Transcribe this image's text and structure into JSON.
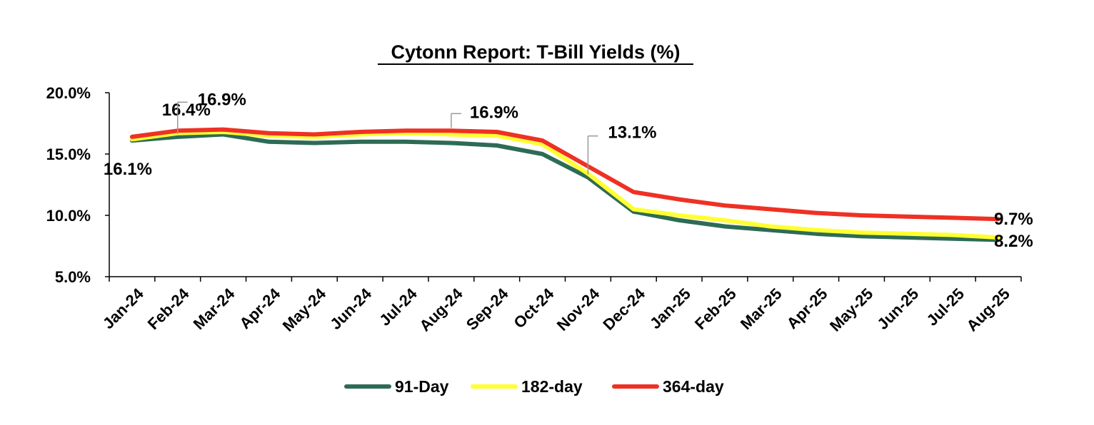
{
  "chart_data": {
    "type": "line",
    "title": "Cytonn Report: T-Bill Yields (%)",
    "xlabel": "",
    "ylabel": "",
    "ylim": [
      5,
      20
    ],
    "yticks": [
      "5.0%",
      "10.0%",
      "15.0%",
      "20.0%"
    ],
    "categories": [
      "Jan-24",
      "Feb-24",
      "Mar-24",
      "Apr-24",
      "May-24",
      "Jun-24",
      "Jul-24",
      "Aug-24",
      "Sep-24",
      "Oct-24",
      "Nov-24",
      "Dec-24",
      "Jan-25",
      "Feb-25",
      "Mar-25",
      "Apr-25",
      "May-25",
      "Jun-25",
      "Jul-25",
      "Aug-25"
    ],
    "series": [
      {
        "name": "91-Day",
        "color": "#2E6B55",
        "values": [
          16.1,
          16.4,
          16.6,
          16.0,
          15.9,
          16.0,
          16.0,
          15.9,
          15.7,
          15.0,
          13.1,
          10.3,
          9.6,
          9.1,
          8.8,
          8.5,
          8.3,
          8.2,
          8.1,
          8.0
        ]
      },
      {
        "name": "182-day",
        "color": "#FFFF33",
        "values": [
          16.2,
          16.7,
          16.8,
          16.5,
          16.4,
          16.6,
          16.7,
          16.6,
          16.5,
          15.8,
          13.4,
          10.5,
          10.0,
          9.6,
          9.1,
          8.8,
          8.6,
          8.5,
          8.4,
          8.2
        ]
      },
      {
        "name": "364-day",
        "color": "#EE3124",
        "values": [
          16.4,
          16.9,
          17.0,
          16.7,
          16.6,
          16.8,
          16.9,
          16.9,
          16.8,
          16.1,
          14.0,
          11.9,
          11.3,
          10.8,
          10.5,
          10.2,
          10.0,
          9.9,
          9.8,
          9.7
        ]
      }
    ],
    "annotations": [
      {
        "text": "16.1%",
        "series": 0,
        "index": 0
      },
      {
        "text": "16.4%",
        "series": 0,
        "index": 1
      },
      {
        "text": "16.9%",
        "series": 2,
        "index": 1
      },
      {
        "text": "16.9%",
        "series": 2,
        "index": 7
      },
      {
        "text": "13.1%",
        "series": 0,
        "index": 10
      },
      {
        "text": "9.7%",
        "series": 2,
        "index": 19
      },
      {
        "text": "8.2%",
        "series": 1,
        "index": 19
      }
    ],
    "grid": false,
    "legend_position": "bottom"
  }
}
